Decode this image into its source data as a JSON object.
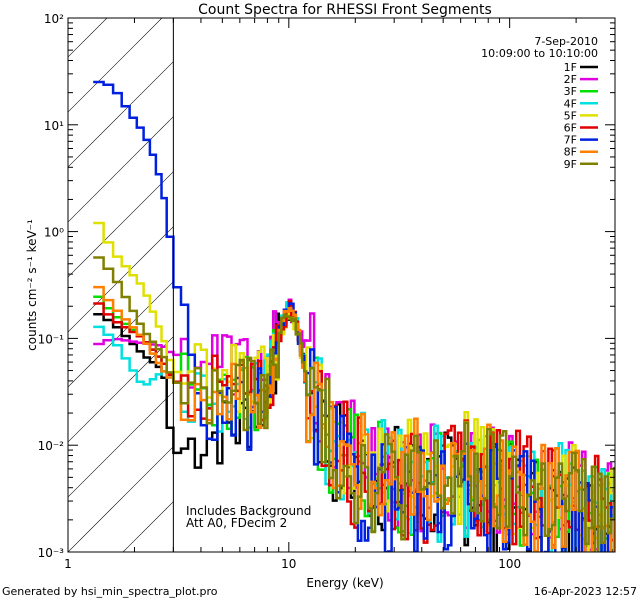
{
  "chart_data": {
    "type": "line",
    "title": "Count Spectra for RHESSI Front Segments",
    "xlabel": "Energy (keV)",
    "ylabel": "counts cm⁻² s⁻¹ keV⁻¹",
    "x_scale": "log",
    "y_scale": "log",
    "xlim": [
      1,
      300
    ],
    "ylim": [
      0.001,
      100
    ],
    "x_ticks": [
      {
        "value": 1,
        "label": "1"
      },
      {
        "value": 10,
        "label": "10"
      },
      {
        "value": 100,
        "label": "100"
      }
    ],
    "y_ticks": [
      {
        "value": 0.001,
        "label": "10⁻³"
      },
      {
        "value": 0.01,
        "label": "10⁻²"
      },
      {
        "value": 0.1,
        "label": "10⁻¹"
      },
      {
        "value": 1,
        "label": "10⁰"
      },
      {
        "value": 10,
        "label": "10¹"
      },
      {
        "value": 100,
        "label": "10²"
      }
    ],
    "date": "7-Sep-2010",
    "time_range": "10:09:00 to 10:10:00",
    "excluded_region_max_keV": 3,
    "annotations": [
      "Includes Background",
      "Att A0, FDecim 2"
    ],
    "series": [
      {
        "name": "1F",
        "color": "#000000",
        "anchors": [
          [
            1.3,
            0.18
          ],
          [
            1.6,
            0.14
          ],
          [
            2.2,
            0.07
          ],
          [
            2.7,
            0.05
          ],
          [
            3.0,
            0.008
          ],
          [
            4.0,
            0.012
          ],
          [
            6.0,
            0.015
          ],
          [
            8.0,
            0.03
          ],
          [
            9.2,
            0.12
          ],
          [
            10.1,
            0.17
          ],
          [
            11.0,
            0.12
          ],
          [
            12.0,
            0.04
          ],
          [
            15.0,
            0.01
          ],
          [
            20.0,
            0.006
          ],
          [
            40.0,
            0.004
          ],
          [
            60.0,
            0.004
          ],
          [
            100.0,
            0.003
          ],
          [
            200.0,
            0.002
          ],
          [
            280.0,
            0.0015
          ]
        ]
      },
      {
        "name": "2F",
        "color": "#e000e0",
        "anchors": [
          [
            1.3,
            0.085
          ],
          [
            1.6,
            0.1
          ],
          [
            2.2,
            0.09
          ],
          [
            2.7,
            0.085
          ],
          [
            3.0,
            0.07
          ],
          [
            4.0,
            0.07
          ],
          [
            6.0,
            0.06
          ],
          [
            8.0,
            0.05
          ],
          [
            9.2,
            0.13
          ],
          [
            10.1,
            0.2
          ],
          [
            11.0,
            0.12
          ],
          [
            13.0,
            0.05
          ],
          [
            15.0,
            0.015
          ],
          [
            20.0,
            0.007
          ],
          [
            40.0,
            0.005
          ],
          [
            60.0,
            0.006
          ],
          [
            100.0,
            0.004
          ],
          [
            200.0,
            0.003
          ],
          [
            280.0,
            0.002
          ]
        ]
      },
      {
        "name": "3F",
        "color": "#00e000",
        "anchors": [
          [
            1.3,
            0.28
          ],
          [
            1.6,
            0.17
          ],
          [
            2.2,
            0.1
          ],
          [
            2.7,
            0.06
          ],
          [
            3.0,
            0.04
          ],
          [
            4.0,
            0.03
          ],
          [
            6.0,
            0.03
          ],
          [
            8.0,
            0.03
          ],
          [
            9.2,
            0.12
          ],
          [
            10.1,
            0.2
          ],
          [
            11.0,
            0.12
          ],
          [
            12.0,
            0.04
          ],
          [
            15.0,
            0.012
          ],
          [
            20.0,
            0.006
          ],
          [
            40.0,
            0.004
          ],
          [
            60.0,
            0.005
          ],
          [
            100.0,
            0.004
          ],
          [
            200.0,
            0.003
          ],
          [
            280.0,
            0.002
          ]
        ]
      },
      {
        "name": "4F",
        "color": "#00e0e0",
        "anchors": [
          [
            1.3,
            0.14
          ],
          [
            1.6,
            0.1
          ],
          [
            2.2,
            0.035
          ],
          [
            2.7,
            0.05
          ],
          [
            3.0,
            0.04
          ],
          [
            4.0,
            0.03
          ],
          [
            6.0,
            0.03
          ],
          [
            8.0,
            0.03
          ],
          [
            9.2,
            0.13
          ],
          [
            10.1,
            0.23
          ],
          [
            11.0,
            0.12
          ],
          [
            12.0,
            0.04
          ],
          [
            15.0,
            0.012
          ],
          [
            20.0,
            0.006
          ],
          [
            40.0,
            0.004
          ],
          [
            60.0,
            0.005
          ],
          [
            100.0,
            0.004
          ],
          [
            200.0,
            0.003
          ],
          [
            280.0,
            0.002
          ]
        ]
      },
      {
        "name": "5F",
        "color": "#e0e000",
        "anchors": [
          [
            1.3,
            1.5
          ],
          [
            1.6,
            0.65
          ],
          [
            2.2,
            0.3
          ],
          [
            2.7,
            0.1
          ],
          [
            3.0,
            0.05
          ],
          [
            4.0,
            0.04
          ],
          [
            6.0,
            0.04
          ],
          [
            8.0,
            0.04
          ],
          [
            9.2,
            0.12
          ],
          [
            10.1,
            0.18
          ],
          [
            11.0,
            0.12
          ],
          [
            12.0,
            0.04
          ],
          [
            15.0,
            0.012
          ],
          [
            20.0,
            0.007
          ],
          [
            40.0,
            0.005
          ],
          [
            60.0,
            0.006
          ],
          [
            100.0,
            0.004
          ],
          [
            200.0,
            0.003
          ],
          [
            280.0,
            0.002
          ]
        ]
      },
      {
        "name": "6F",
        "color": "#e00000",
        "anchors": [
          [
            1.3,
            0.24
          ],
          [
            1.6,
            0.15
          ],
          [
            2.2,
            0.1
          ],
          [
            2.7,
            0.06
          ],
          [
            3.0,
            0.04
          ],
          [
            4.0,
            0.035
          ],
          [
            6.0,
            0.03
          ],
          [
            8.0,
            0.03
          ],
          [
            9.2,
            0.12
          ],
          [
            10.1,
            0.2
          ],
          [
            11.0,
            0.12
          ],
          [
            12.0,
            0.04
          ],
          [
            15.0,
            0.012
          ],
          [
            20.0,
            0.006
          ],
          [
            40.0,
            0.004
          ],
          [
            60.0,
            0.005
          ],
          [
            100.0,
            0.004
          ],
          [
            200.0,
            0.003
          ],
          [
            280.0,
            0.002
          ]
        ]
      },
      {
        "name": "7F",
        "color": "#0020e0",
        "anchors": [
          [
            1.3,
            26
          ],
          [
            1.6,
            23
          ],
          [
            1.9,
            13
          ],
          [
            2.2,
            8.5
          ],
          [
            2.5,
            4.5
          ],
          [
            2.8,
            1.6
          ],
          [
            3.0,
            0.5
          ],
          [
            3.3,
            0.15
          ],
          [
            3.7,
            0.05
          ],
          [
            4.2,
            0.02
          ],
          [
            5.0,
            0.015
          ],
          [
            6.0,
            0.02
          ],
          [
            7.0,
            0.02
          ],
          [
            8.0,
            0.03
          ],
          [
            9.2,
            0.12
          ],
          [
            10.1,
            0.21
          ],
          [
            11.0,
            0.12
          ],
          [
            12.0,
            0.04
          ],
          [
            15.0,
            0.008
          ],
          [
            20.0,
            0.004
          ],
          [
            40.0,
            0.003
          ],
          [
            60.0,
            0.003
          ],
          [
            100.0,
            0.003
          ],
          [
            200.0,
            0.002
          ],
          [
            280.0,
            0.0015
          ]
        ]
      },
      {
        "name": "8F",
        "color": "#ff8000",
        "anchors": [
          [
            1.3,
            0.35
          ],
          [
            1.6,
            0.2
          ],
          [
            2.2,
            0.1
          ],
          [
            2.7,
            0.05
          ],
          [
            3.0,
            0.04
          ],
          [
            4.0,
            0.03
          ],
          [
            6.0,
            0.03
          ],
          [
            8.0,
            0.03
          ],
          [
            9.2,
            0.12
          ],
          [
            10.1,
            0.21
          ],
          [
            11.0,
            0.12
          ],
          [
            12.0,
            0.04
          ],
          [
            15.0,
            0.012
          ],
          [
            20.0,
            0.006
          ],
          [
            40.0,
            0.005
          ],
          [
            60.0,
            0.005
          ],
          [
            100.0,
            0.004
          ],
          [
            200.0,
            0.003
          ],
          [
            280.0,
            0.002
          ]
        ]
      },
      {
        "name": "9F",
        "color": "#808000",
        "anchors": [
          [
            1.3,
            0.65
          ],
          [
            1.6,
            0.4
          ],
          [
            2.2,
            0.12
          ],
          [
            2.7,
            0.07
          ],
          [
            3.0,
            0.04
          ],
          [
            4.0,
            0.03
          ],
          [
            6.0,
            0.03
          ],
          [
            8.0,
            0.03
          ],
          [
            9.2,
            0.12
          ],
          [
            10.1,
            0.19
          ],
          [
            11.0,
            0.12
          ],
          [
            12.0,
            0.04
          ],
          [
            15.0,
            0.012
          ],
          [
            20.0,
            0.006
          ],
          [
            40.0,
            0.004
          ],
          [
            60.0,
            0.005
          ],
          [
            100.0,
            0.004
          ],
          [
            200.0,
            0.003
          ],
          [
            280.0,
            0.002
          ]
        ]
      }
    ]
  },
  "footer": {
    "generated_by": "Generated by hsi_min_spectra_plot.pro",
    "timestamp": "16-Apr-2023 12:57"
  }
}
